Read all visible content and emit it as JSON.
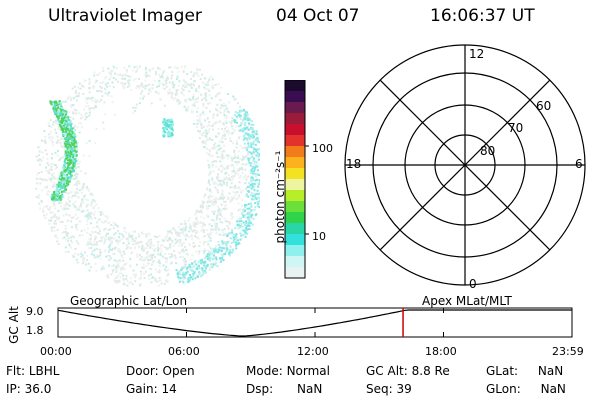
{
  "header": {
    "title": "Ultraviolet Imager",
    "date": "04 Oct 07",
    "time": "16:06:37 UT"
  },
  "colorbar": {
    "unit": "photon cm⁻²s⁻¹",
    "ticks": [
      "100",
      "10"
    ]
  },
  "polar_plot": {
    "lat_labels": [
      "80",
      "70",
      "60"
    ],
    "mlt_labels": {
      "top": "12",
      "left": "18",
      "right": "6",
      "bottom": "0"
    }
  },
  "timeline": {
    "left_title": "Geographic Lat/Lon",
    "right_title": "Apex MLat/MLT",
    "y_label": "GC Alt",
    "y_ticks": [
      "9.0",
      "1.8"
    ],
    "x_ticks": [
      "00:00",
      "06:00",
      "12:00",
      "18:00",
      "23:59"
    ],
    "marker_time": "16:06",
    "marker_color": "#cc0000"
  },
  "info": {
    "flt_label": "Flt:",
    "flt_value": "LBHL",
    "ip_label": "IP:",
    "ip_value": "36.0",
    "door_label": "Door:",
    "door_value": "Open",
    "gain_label": "Gain:",
    "gain_value": "14",
    "mode_label": "Mode:",
    "mode_value": "Normal",
    "dsp_label": "Dsp:",
    "dsp_value": "NaN",
    "gcalt_label": "GC Alt:",
    "gcalt_value": "8.8 Re",
    "seq_label": "Seq:",
    "seq_value": "39",
    "glat_label": "GLat:",
    "glat_value": "NaN",
    "glon_label": "GLon:",
    "glon_value": "NaN"
  }
}
